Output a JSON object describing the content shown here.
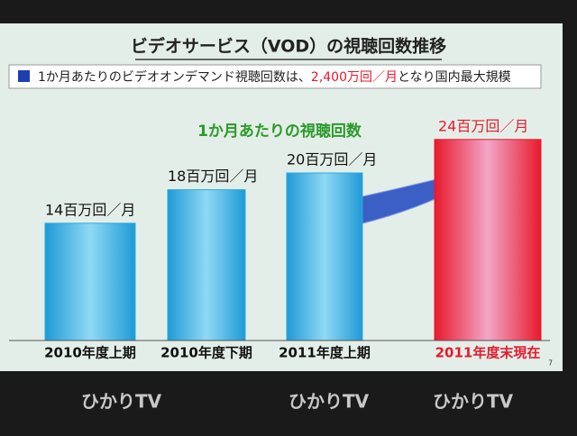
{
  "chart_data": {
    "type": "bar",
    "title": "ビデオサービス（VOD）の視聴回数推移",
    "subtitle": [
      "1か月あたりのビデオオンデマンド視聴回数は、",
      "2,400万回／月",
      "となり国内最大規模"
    ],
    "chart_title": "1か月あたりの視聴回数",
    "categories": [
      "2010年度上期",
      "2010年度下期",
      "2011年度上期",
      "2011年度末現在"
    ],
    "values": [
      14,
      18,
      20,
      24
    ],
    "value_labels": [
      "14百万回／月",
      "18百万回／月",
      "20百万回／月",
      "24百万回／月"
    ],
    "colors": [
      "#2aa9e2",
      "#2aa9e2",
      "#2aa9e2",
      "#e8192c"
    ],
    "page_number": "7",
    "footer_logo": "ひかりTV"
  }
}
